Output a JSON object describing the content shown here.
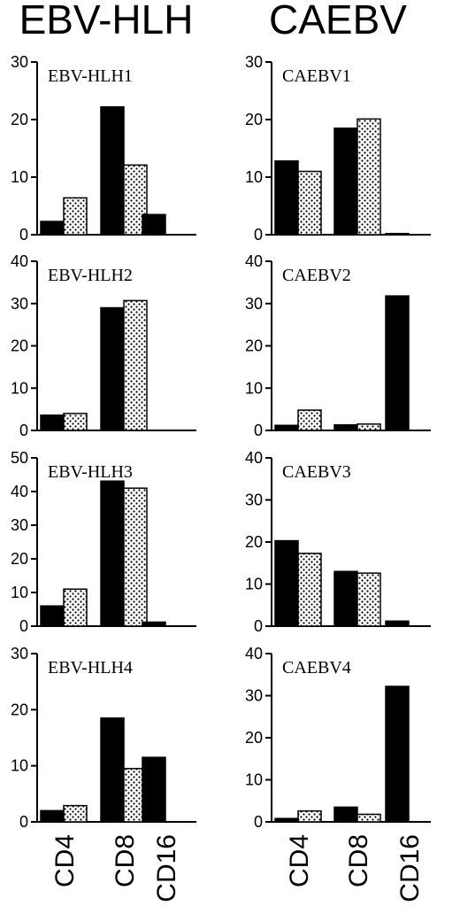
{
  "columns": [
    {
      "title": "EBV-HLH"
    },
    {
      "title": "CAEBV"
    }
  ],
  "chart_data": [
    {
      "type": "bar",
      "title": "EBV-HLH1",
      "categories": [
        "CD4",
        "CD8",
        "CD16"
      ],
      "ylim": [
        0,
        30
      ],
      "yticks": [
        0,
        10,
        20,
        30
      ],
      "series": [
        {
          "values": [
            2.3,
            22.2,
            3.5
          ]
        },
        {
          "values": [
            6.4,
            12.1,
            null
          ]
        }
      ]
    },
    {
      "type": "bar",
      "title": "EBV-HLH2",
      "categories": [
        "CD4",
        "CD8",
        "CD16"
      ],
      "ylim": [
        0,
        40
      ],
      "yticks": [
        0,
        10,
        20,
        30,
        40
      ],
      "series": [
        {
          "values": [
            3.6,
            29.0,
            null
          ]
        },
        {
          "values": [
            4.0,
            30.7,
            null
          ]
        }
      ]
    },
    {
      "type": "bar",
      "title": "EBV-HLH3",
      "categories": [
        "CD4",
        "CD8",
        "CD16"
      ],
      "ylim": [
        0,
        50
      ],
      "yticks": [
        0,
        10,
        20,
        30,
        40,
        50
      ],
      "series": [
        {
          "values": [
            6.0,
            43.1,
            1.2
          ]
        },
        {
          "values": [
            11.0,
            41.0,
            null
          ]
        }
      ]
    },
    {
      "type": "bar",
      "title": "EBV-HLH4",
      "categories": [
        "CD4",
        "CD8",
        "CD16"
      ],
      "ylim": [
        0,
        30
      ],
      "yticks": [
        0,
        10,
        20,
        30
      ],
      "series": [
        {
          "values": [
            2.0,
            18.5,
            11.5
          ]
        },
        {
          "values": [
            2.9,
            9.5,
            null
          ]
        }
      ]
    },
    {
      "type": "bar",
      "title": "CAEBV1",
      "categories": [
        "CD4",
        "CD8",
        "CD16"
      ],
      "ylim": [
        0,
        30
      ],
      "yticks": [
        0,
        10,
        20,
        30
      ],
      "series": [
        {
          "values": [
            12.8,
            18.5,
            0.2
          ]
        },
        {
          "values": [
            11.0,
            20.1,
            null
          ]
        }
      ]
    },
    {
      "type": "bar",
      "title": "CAEBV2",
      "categories": [
        "CD4",
        "CD8",
        "CD16"
      ],
      "ylim": [
        0,
        40
      ],
      "yticks": [
        0,
        10,
        20,
        30,
        40
      ],
      "series": [
        {
          "values": [
            1.2,
            1.3,
            31.8
          ]
        },
        {
          "values": [
            4.8,
            1.5,
            null
          ]
        }
      ]
    },
    {
      "type": "bar",
      "title": "CAEBV3",
      "categories": [
        "CD4",
        "CD8",
        "CD16"
      ],
      "ylim": [
        0,
        40
      ],
      "yticks": [
        0,
        10,
        20,
        30,
        40
      ],
      "series": [
        {
          "values": [
            20.3,
            13.0,
            1.2
          ]
        },
        {
          "values": [
            17.3,
            12.6,
            null
          ]
        }
      ]
    },
    {
      "type": "bar",
      "title": "CAEBV4",
      "categories": [
        "CD4",
        "CD8",
        "CD16"
      ],
      "ylim": [
        0,
        40
      ],
      "yticks": [
        0,
        10,
        20,
        30,
        40
      ],
      "series": [
        {
          "values": [
            0.8,
            3.5,
            32.2
          ]
        },
        {
          "values": [
            2.6,
            1.8,
            null
          ]
        }
      ]
    }
  ],
  "x_categories": [
    "CD4",
    "CD8",
    "CD16"
  ]
}
